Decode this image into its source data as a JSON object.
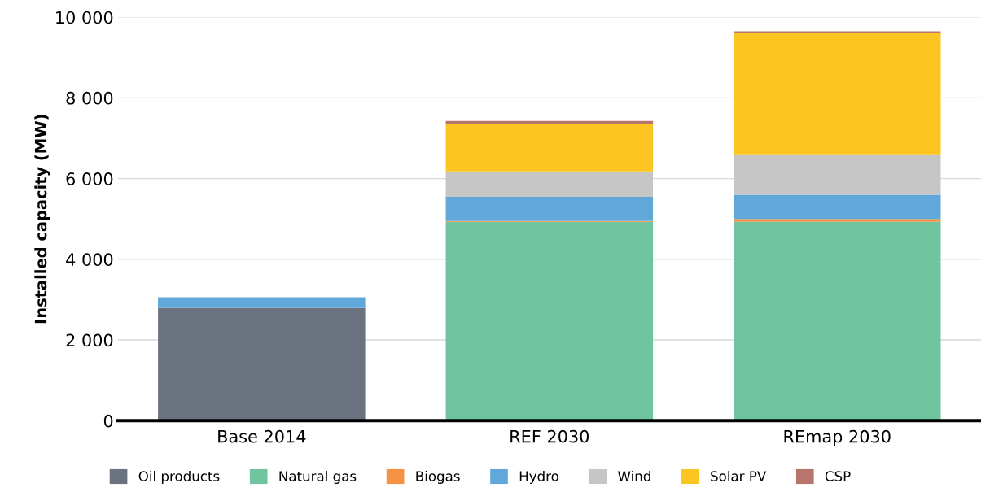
{
  "chart_data": {
    "type": "bar",
    "stacked": true,
    "ylabel": "Installed capacity (MW)",
    "categories": [
      "Base 2014",
      "REF 2030",
      "REmap 2030"
    ],
    "series": [
      {
        "name": "Oil products",
        "color": "#6b7280",
        "values": [
          2790,
          0,
          0
        ]
      },
      {
        "name": "Natural gas",
        "color": "#6fc59f",
        "values": [
          0,
          4930,
          4930
        ]
      },
      {
        "name": "Biogas",
        "color": "#f59246",
        "values": [
          0,
          20,
          70
        ]
      },
      {
        "name": "Hydro",
        "color": "#60a8d9",
        "values": [
          270,
          600,
          600
        ]
      },
      {
        "name": "Wind",
        "color": "#c5c6c5",
        "values": [
          0,
          630,
          1000
        ]
      },
      {
        "name": "Solar PV",
        "color": "#fcc521",
        "values": [
          0,
          1170,
          3000
        ]
      },
      {
        "name": "CSP",
        "color": "#b8756b",
        "values": [
          0,
          80,
          50
        ]
      }
    ],
    "ylim": [
      0,
      10000
    ],
    "yticks": [
      {
        "value": 0,
        "label": "0"
      },
      {
        "value": 2000,
        "label": "2 000"
      },
      {
        "value": 4000,
        "label": "4 000"
      },
      {
        "value": 6000,
        "label": "6 000"
      },
      {
        "value": 8000,
        "label": "8 000"
      },
      {
        "value": 10000,
        "label": "10 000"
      }
    ],
    "grid": "y",
    "legend": "bottom"
  }
}
